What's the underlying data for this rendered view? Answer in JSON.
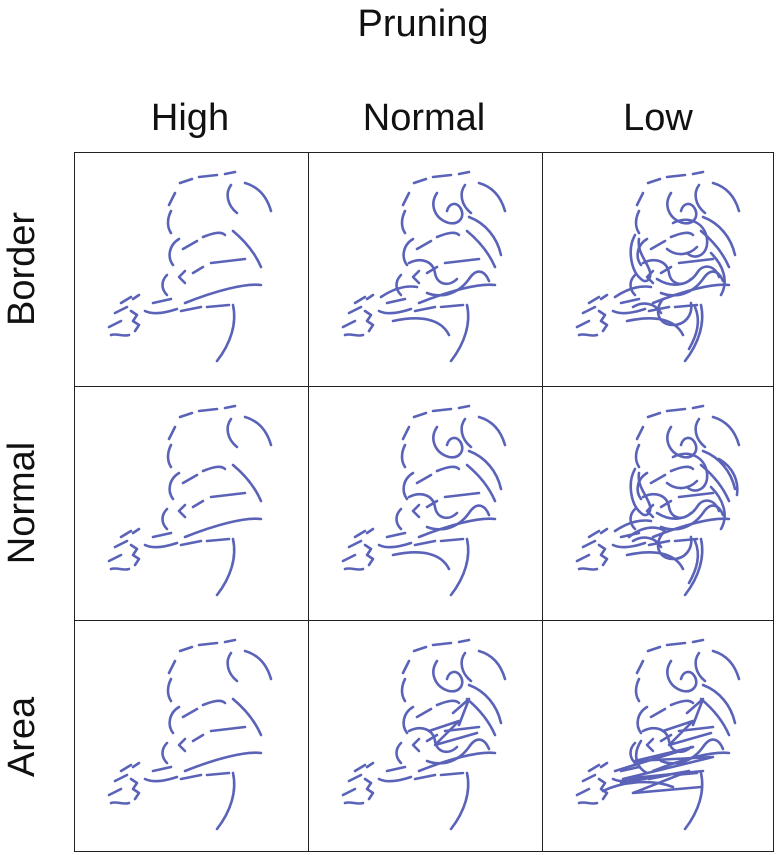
{
  "title": "Pruning",
  "columns": [
    {
      "label": "High"
    },
    {
      "label": "Normal"
    },
    {
      "label": "Low"
    }
  ],
  "rows": [
    {
      "label": "Border"
    },
    {
      "label": "Normal"
    },
    {
      "label": "Area"
    }
  ],
  "stroke_color": "#5a63b8",
  "grid_line_color": "#222222"
}
